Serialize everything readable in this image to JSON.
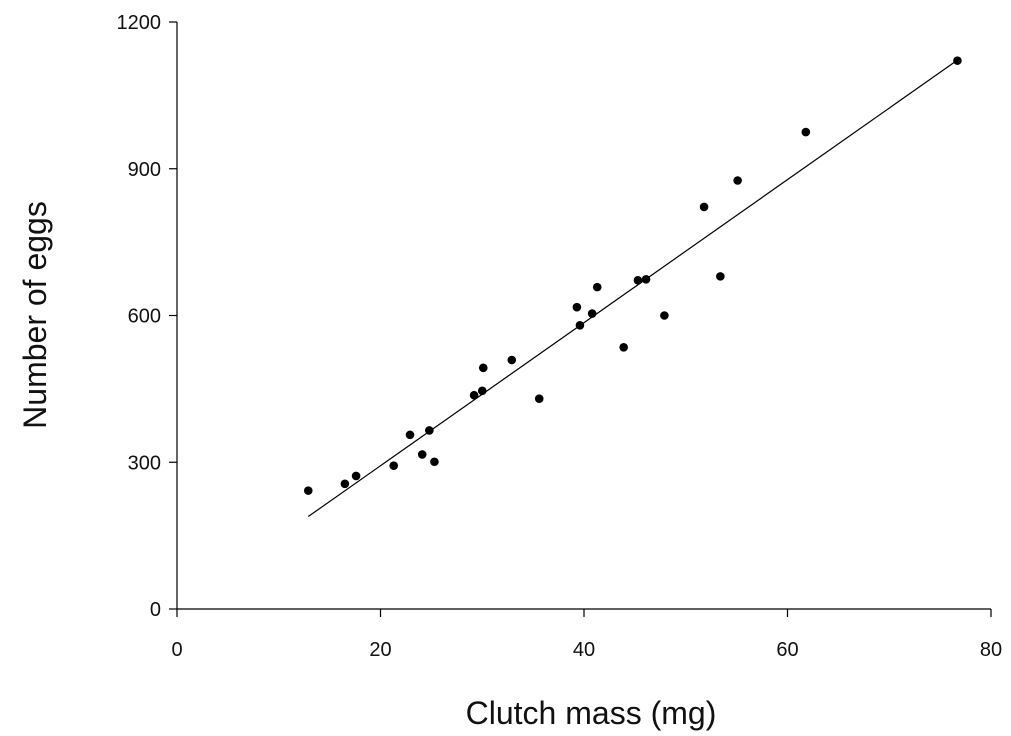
{
  "chart_data": {
    "type": "scatter",
    "title": "",
    "xlabel": "Clutch mass (mg)",
    "ylabel": "Number of eggs",
    "xlim": [
      0,
      80
    ],
    "ylim": [
      0,
      1200
    ],
    "xticks": [
      0,
      20,
      40,
      60,
      80
    ],
    "yticks": [
      0,
      300,
      600,
      900,
      1200
    ],
    "grid": false,
    "legend": "none",
    "series": [
      {
        "marker_color": "#000000",
        "points": [
          {
            "x": 12.9,
            "y": 242
          },
          {
            "x": 16.5,
            "y": 256
          },
          {
            "x": 17.6,
            "y": 272
          },
          {
            "x": 21.3,
            "y": 293
          },
          {
            "x": 22.9,
            "y": 356
          },
          {
            "x": 24.1,
            "y": 316
          },
          {
            "x": 24.8,
            "y": 365
          },
          {
            "x": 25.3,
            "y": 301
          },
          {
            "x": 29.2,
            "y": 437
          },
          {
            "x": 30.0,
            "y": 446
          },
          {
            "x": 30.1,
            "y": 493
          },
          {
            "x": 32.9,
            "y": 509
          },
          {
            "x": 35.6,
            "y": 430
          },
          {
            "x": 39.3,
            "y": 617
          },
          {
            "x": 39.6,
            "y": 580
          },
          {
            "x": 40.8,
            "y": 604
          },
          {
            "x": 41.3,
            "y": 658
          },
          {
            "x": 43.9,
            "y": 535
          },
          {
            "x": 45.3,
            "y": 672
          },
          {
            "x": 46.1,
            "y": 674
          },
          {
            "x": 47.9,
            "y": 600
          },
          {
            "x": 51.8,
            "y": 822
          },
          {
            "x": 53.4,
            "y": 680
          },
          {
            "x": 55.1,
            "y": 876
          },
          {
            "x": 61.8,
            "y": 975
          },
          {
            "x": 76.7,
            "y": 1121
          }
        ]
      }
    ],
    "trend_line": {
      "x": [
        12.9,
        76.7
      ],
      "y": [
        189,
        1122
      ],
      "color": "#000000"
    }
  }
}
